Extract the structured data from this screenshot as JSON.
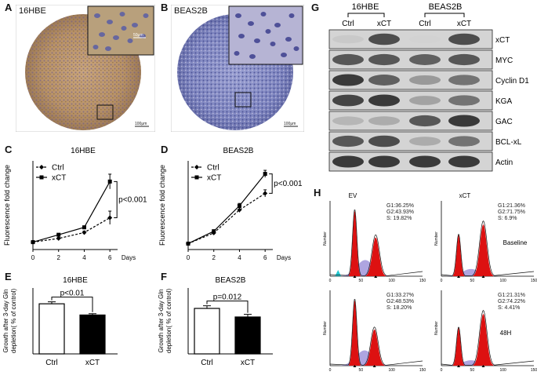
{
  "panels": {
    "A": "A",
    "B": "B",
    "C": "C",
    "D": "D",
    "E": "E",
    "F": "F",
    "G": "G",
    "H": "H"
  },
  "panel_A": {
    "cell_line": "16HBE",
    "scale_small": "50μm",
    "scale_large": "100μm"
  },
  "panel_B": {
    "cell_line": "BEAS2B",
    "scale_large": "100μm"
  },
  "colors": {
    "ihc_brown": "#b5936a",
    "ihc_blue": "#6f78b8",
    "flow_red": "#dd1111",
    "flow_purple": "#9a8fd8",
    "flow_cyan": "#22c8d0"
  },
  "chart_data": [
    {
      "type": "line",
      "title": "16HBE",
      "xlabel": "Days",
      "ylabel": "Fluorescence fold change",
      "x": [
        0,
        2,
        4,
        6
      ],
      "xlim": [
        0,
        6.6
      ],
      "ylim": [
        0,
        12
      ],
      "series": [
        {
          "name": "Ctrl",
          "values": [
            1.0,
            1.5,
            2.3,
            4.3
          ],
          "err": [
            0.1,
            0.15,
            0.2,
            0.9
          ],
          "style": "dashed",
          "marker": "diamond"
        },
        {
          "name": "xCT",
          "values": [
            1.0,
            2.0,
            3.0,
            9.2
          ],
          "err": [
            0.1,
            0.15,
            0.2,
            1.0
          ],
          "style": "solid",
          "marker": "square"
        }
      ],
      "annotation": "p<0.001",
      "legend": "top-left"
    },
    {
      "type": "line",
      "title": "BEAS2B",
      "xlabel": "Days",
      "ylabel": "Fluorescence fold change",
      "x": [
        0,
        2,
        4,
        6
      ],
      "xlim": [
        0,
        6.6
      ],
      "ylim": [
        0,
        15
      ],
      "series": [
        {
          "name": "Ctrl",
          "values": [
            1.0,
            2.8,
            6.7,
            9.5
          ],
          "err": [
            0.1,
            0.2,
            0.4,
            0.6
          ],
          "style": "dashed",
          "marker": "diamond"
        },
        {
          "name": "xCT",
          "values": [
            1.0,
            3.1,
            7.4,
            12.8
          ],
          "err": [
            0.1,
            0.2,
            0.4,
            0.6
          ],
          "style": "solid",
          "marker": "square"
        }
      ],
      "annotation": "p<0.001",
      "legend": "top-left"
    },
    {
      "type": "bar",
      "title": "16HBE",
      "ylabel": "Growth after 3-day Gln depletion( % of control)",
      "categories": [
        "Ctrl",
        "xCT"
      ],
      "values": [
        0.76,
        0.59
      ],
      "err": [
        0.03,
        0.02
      ],
      "ylim": [
        0,
        1.0
      ],
      "annotation": "p<0.01"
    },
    {
      "type": "bar",
      "title": "BEAS2B",
      "ylabel": "Growth after 3-day Gln depletion( % of control)",
      "categories": [
        "Ctrl",
        "xCT"
      ],
      "values": [
        0.69,
        0.56
      ],
      "err": [
        0.04,
        0.04
      ],
      "ylim": [
        0,
        1.0
      ],
      "annotation": "p=0.012"
    }
  ],
  "western": {
    "groups": [
      "16HBE",
      "BEAS2B"
    ],
    "lanes": [
      "Ctrl",
      "xCT",
      "Ctrl",
      "xCT"
    ],
    "rows": [
      {
        "label": "xCT",
        "intensity": [
          0.1,
          0.75,
          0.05,
          0.75
        ]
      },
      {
        "label": "MYC",
        "intensity": [
          0.7,
          0.7,
          0.65,
          0.7
        ]
      },
      {
        "label": "Cyclin D1",
        "intensity": [
          0.85,
          0.65,
          0.35,
          0.55
        ]
      },
      {
        "label": "KGA",
        "intensity": [
          0.8,
          0.85,
          0.3,
          0.55
        ]
      },
      {
        "label": "GAC",
        "intensity": [
          0.2,
          0.25,
          0.7,
          0.85
        ]
      },
      {
        "label": "BCL-xL",
        "intensity": [
          0.7,
          0.75,
          0.25,
          0.55
        ]
      },
      {
        "label": "Actin",
        "intensity": [
          0.85,
          0.85,
          0.85,
          0.85
        ]
      }
    ]
  },
  "flow": {
    "col_headers": [
      "EV",
      "xCT"
    ],
    "row_labels": [
      "Baseline",
      "48H"
    ],
    "ylabel": "Number",
    "x_ticks": [
      "0",
      "50",
      "100",
      "150"
    ],
    "stats": [
      [
        "G1:36.25%",
        "G2:43.93%",
        "S: 19.82%"
      ],
      [
        "G1:21.36%",
        "G2:71.75%",
        "S: 6.9%"
      ],
      [
        "G1:33.27%",
        "G2:48.53%",
        "S: 18.20%"
      ],
      [
        "G1:21.31%",
        "G2:74.22%",
        "S: 4.41%"
      ]
    ]
  }
}
